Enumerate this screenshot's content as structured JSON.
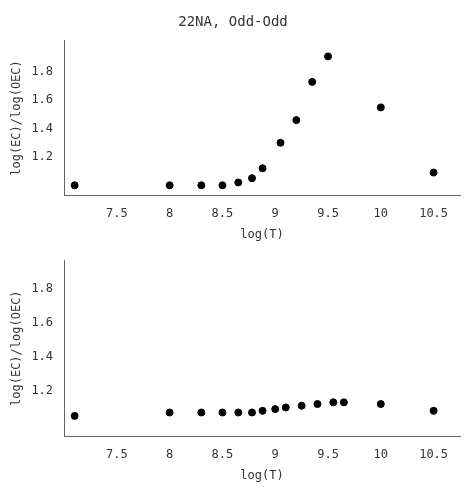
{
  "chart_data": [
    {
      "type": "scatter",
      "title": "22NA, Odd-Odd",
      "xlabel": "log(T)",
      "ylabel": "log(EC)/log(OEC)",
      "x": [
        7.1,
        8.0,
        8.3,
        8.5,
        8.65,
        8.78,
        8.88,
        9.05,
        9.2,
        9.35,
        9.5,
        10.0,
        10.5
      ],
      "values": [
        1.0,
        1.0,
        1.0,
        1.0,
        1.02,
        1.05,
        1.12,
        1.3,
        1.46,
        1.73,
        1.91,
        1.55,
        1.09
      ],
      "color": "black",
      "xlim": [
        7.0,
        10.75
      ],
      "xticks": [
        7.5,
        8,
        8.5,
        9,
        9.5,
        10,
        10.5
      ],
      "ylim": [
        0.93,
        2.02
      ],
      "yticks": [
        1.2,
        1.4,
        1.6,
        1.8
      ],
      "grid": false
    },
    {
      "type": "scatter",
      "xlabel": "log(T)",
      "ylabel": "log(EC)/log(OEC)",
      "x": [
        7.1,
        8.0,
        8.3,
        8.5,
        8.65,
        8.78,
        8.88,
        9.0,
        9.1,
        9.25,
        9.4,
        9.55,
        9.65,
        10.0,
        10.5
      ],
      "values": [
        1.05,
        1.07,
        1.07,
        1.07,
        1.07,
        1.07,
        1.08,
        1.09,
        1.1,
        1.11,
        1.12,
        1.13,
        1.13,
        1.12,
        1.08
      ],
      "color": "black",
      "xlim": [
        7.0,
        10.75
      ],
      "xticks": [
        7.5,
        8,
        8.5,
        9,
        9.5,
        10,
        10.5
      ],
      "ylim": [
        0.93,
        1.97
      ],
      "yticks": [
        1.2,
        1.4,
        1.6,
        1.8
      ],
      "grid": false
    }
  ]
}
